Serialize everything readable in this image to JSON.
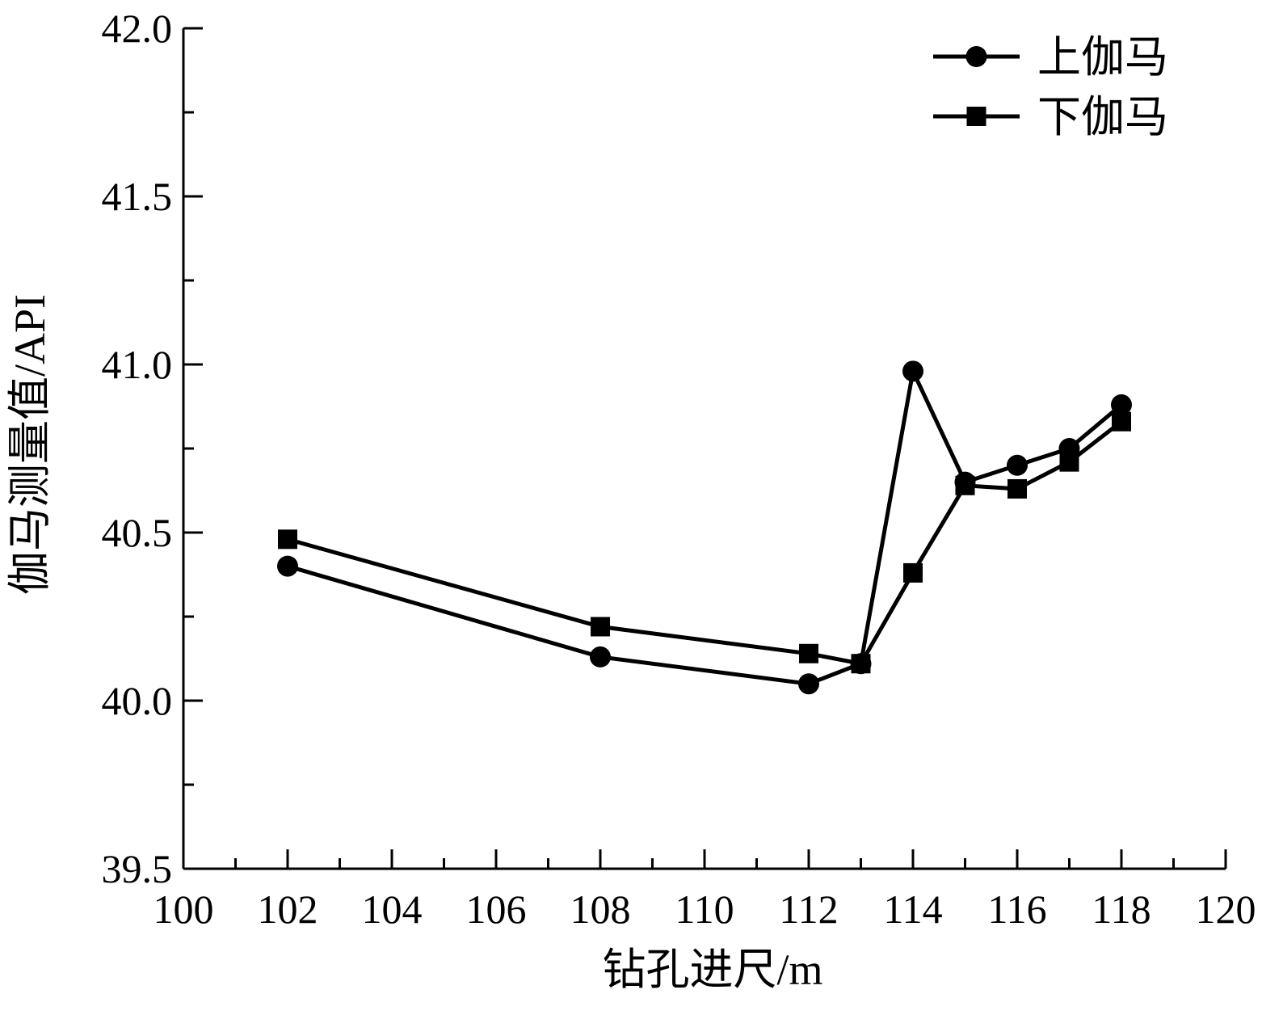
{
  "chart_data": {
    "type": "line",
    "title": "",
    "xlabel": "钻孔进尺/m",
    "ylabel": "伽马测量值/API",
    "xlim": [
      100,
      120
    ],
    "ylim": [
      39.5,
      42.0
    ],
    "x_ticks": [
      100,
      102,
      104,
      106,
      108,
      110,
      112,
      114,
      116,
      118,
      120
    ],
    "x_tick_labels": [
      "100",
      "102",
      "104",
      "106",
      "108",
      "110",
      "112",
      "114",
      "116",
      "118",
      "120"
    ],
    "y_ticks": [
      39.5,
      40.0,
      40.5,
      41.0,
      41.5,
      42.0
    ],
    "y_tick_labels": [
      "39.5",
      "40.0",
      "40.5",
      "41.0",
      "41.5",
      "42.0"
    ],
    "grid": false,
    "legend_position": "top-right",
    "series": [
      {
        "name": "上伽马",
        "marker": "circle",
        "color": "#000000",
        "x": [
          102,
          108,
          112,
          113,
          114,
          115,
          116,
          117,
          118
        ],
        "y": [
          40.4,
          40.13,
          40.05,
          40.11,
          40.98,
          40.65,
          40.7,
          40.75,
          40.88
        ]
      },
      {
        "name": "下伽马",
        "marker": "square",
        "color": "#000000",
        "x": [
          102,
          108,
          112,
          113,
          114,
          115,
          116,
          117,
          118
        ],
        "y": [
          40.48,
          40.22,
          40.14,
          40.11,
          40.38,
          40.64,
          40.63,
          40.71,
          40.83
        ]
      }
    ]
  }
}
